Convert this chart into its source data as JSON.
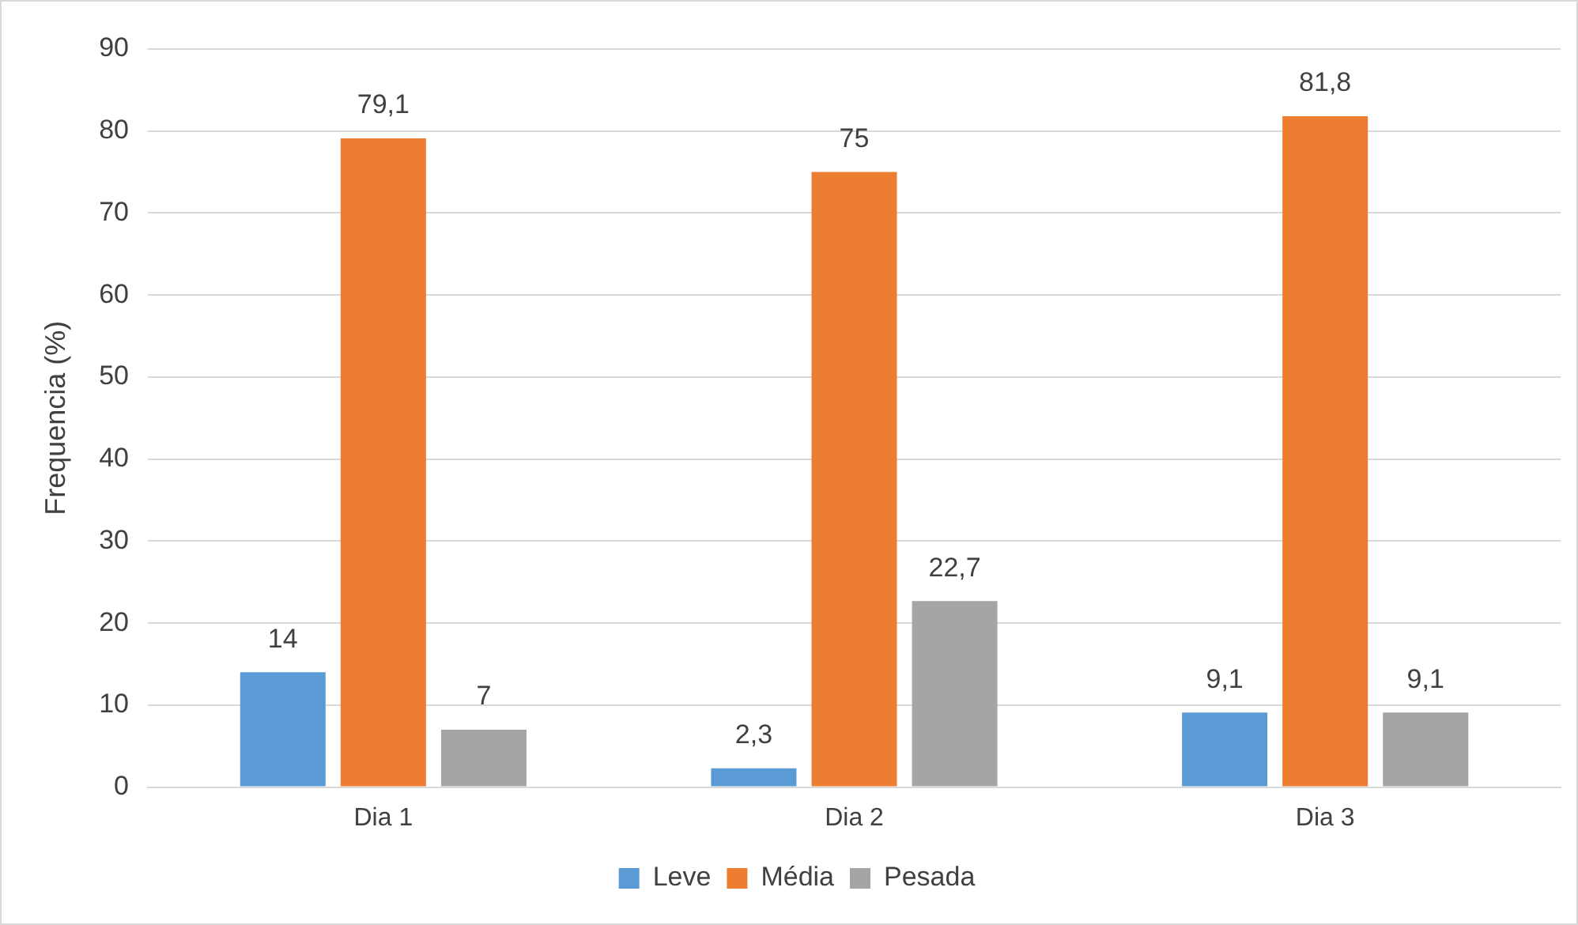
{
  "chart_data": {
    "type": "bar",
    "ylabel": "Frequencia (%)",
    "categories": [
      "Dia 1",
      "Dia 2",
      "Dia 3"
    ],
    "series": [
      {
        "name": "Leve",
        "color": "#5b9bd5",
        "values": [
          14,
          2.3,
          9.1
        ],
        "value_labels": [
          "14",
          "2,3",
          "9,1"
        ]
      },
      {
        "name": "Média",
        "color": "#ed7d31",
        "values": [
          79.1,
          75,
          81.8
        ],
        "value_labels": [
          "79,1",
          "75",
          "81,8"
        ]
      },
      {
        "name": "Pesada",
        "color": "#a5a5a5",
        "values": [
          7,
          22.7,
          9.1
        ],
        "value_labels": [
          "7",
          "22,7",
          "9,1"
        ]
      }
    ],
    "ylim": [
      0,
      90
    ],
    "yticks": [
      0,
      10,
      20,
      30,
      40,
      50,
      60,
      70,
      80,
      90
    ],
    "grid": "y",
    "legend": "bottom"
  }
}
